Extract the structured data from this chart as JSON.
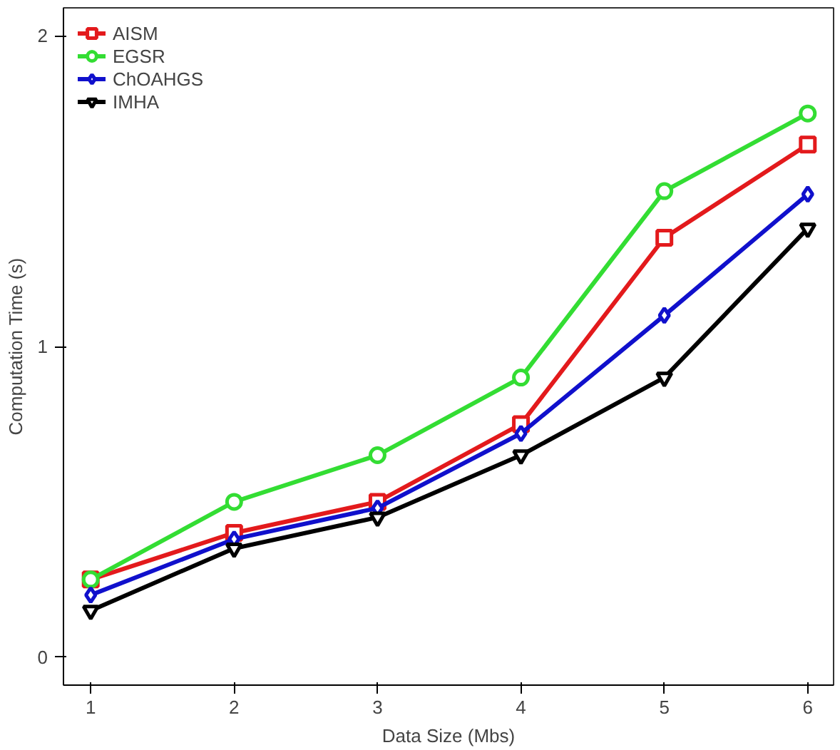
{
  "chart_data": {
    "type": "line",
    "xlabel": "Data Size (Mbs)",
    "ylabel": "Computation Time (s)",
    "x": [
      1,
      2,
      3,
      4,
      5,
      6
    ],
    "xlim": [
      0.81,
      6.18
    ],
    "xticks": [
      1,
      2,
      3,
      4,
      5,
      6
    ],
    "ylim": [
      -0.09,
      2.09
    ],
    "yticks": [
      0,
      1,
      2
    ],
    "grid": false,
    "legend": "top left",
    "series": [
      {
        "name": "AISM",
        "color": "#e31a1c",
        "marker": "square",
        "values": [
          0.25,
          0.4,
          0.5,
          0.75,
          1.35,
          1.65
        ]
      },
      {
        "name": "EGSR",
        "color": "#33dd33",
        "marker": "circle",
        "values": [
          0.25,
          0.5,
          0.65,
          0.9,
          1.5,
          1.75
        ]
      },
      {
        "name": "ChOAHGS",
        "color": "#1010cc",
        "marker": "diamond",
        "values": [
          0.2,
          0.38,
          0.48,
          0.72,
          1.1,
          1.49
        ]
      },
      {
        "name": "IMHA",
        "color": "#000000",
        "marker": "triangle",
        "values": [
          0.15,
          0.35,
          0.45,
          0.65,
          0.9,
          1.38
        ]
      }
    ]
  }
}
